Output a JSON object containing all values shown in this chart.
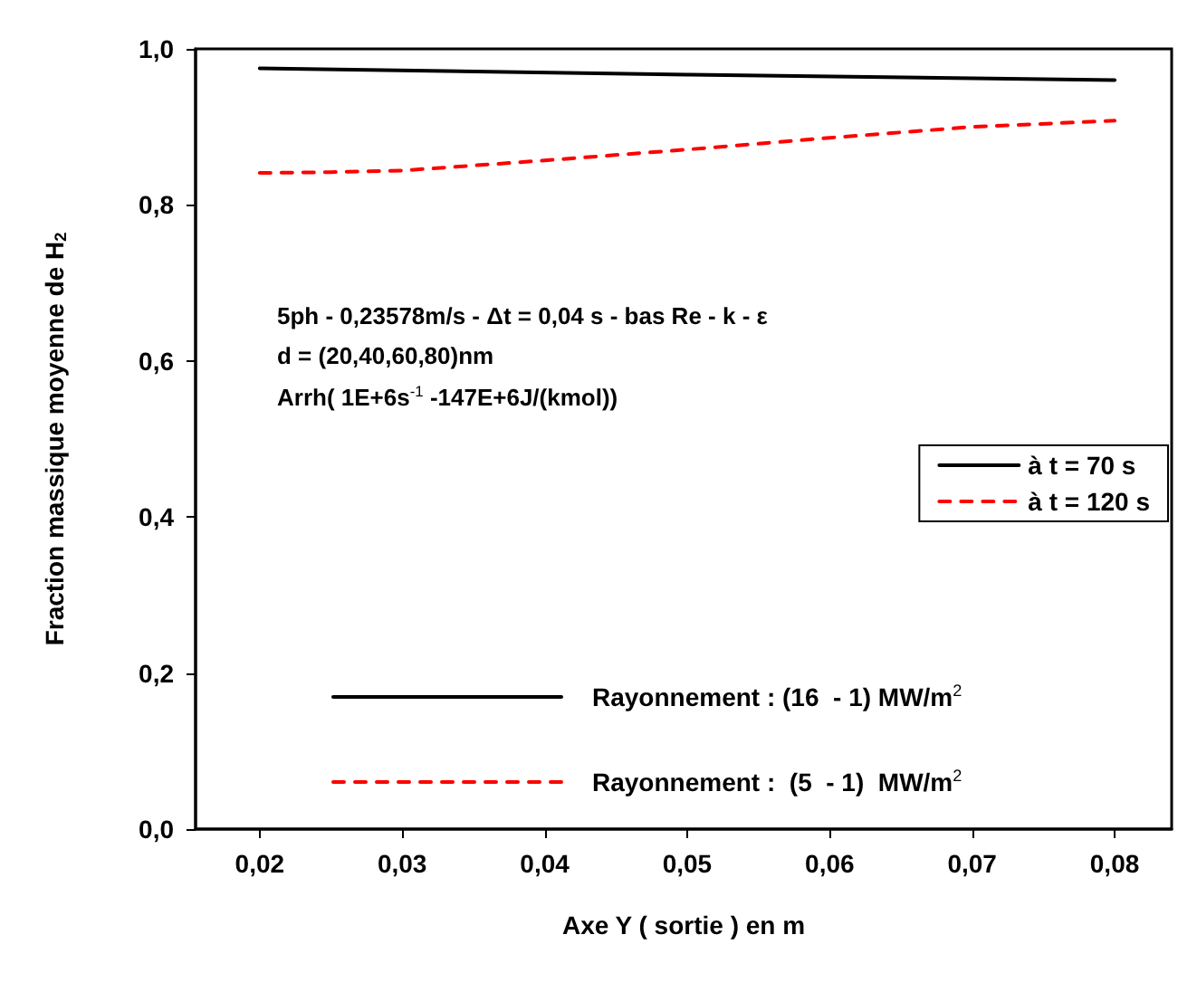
{
  "chart_data": {
    "type": "line",
    "xlabel": "Axe Y ( sortie ) en m",
    "ylabel": "Fraction massique moyenne de H$_{2}$",
    "xlim": [
      0.0155,
      0.084
    ],
    "ylim": [
      0,
      1.0
    ],
    "xticks": [
      {
        "value": 0.02,
        "label": "0,02"
      },
      {
        "value": 0.03,
        "label": "0,03"
      },
      {
        "value": 0.04,
        "label": "0,04"
      },
      {
        "value": 0.05,
        "label": "0,05"
      },
      {
        "value": 0.06,
        "label": "0,06"
      },
      {
        "value": 0.07,
        "label": "0,07"
      },
      {
        "value": 0.08,
        "label": "0,08"
      }
    ],
    "yticks": [
      {
        "value": 0,
        "label": "0,0"
      },
      {
        "value": 0.2,
        "label": "0,2"
      },
      {
        "value": 0.4,
        "label": "0,4"
      },
      {
        "value": 0.6,
        "label": "0,6"
      },
      {
        "value": 0.8,
        "label": "0,8"
      },
      {
        "value": 1.0,
        "label": "1,0"
      }
    ],
    "series": [
      {
        "name": "à t = 70 s",
        "color": "#000000",
        "line_style": "solid",
        "x": [
          0.02,
          0.05,
          0.08
        ],
        "values": [
          0.975,
          0.967,
          0.96
        ]
      },
      {
        "name": "à t = 120 s",
        "color": "#ff0000",
        "line_style": "dashed",
        "x": [
          0.02,
          0.025,
          0.03,
          0.04,
          0.05,
          0.06,
          0.07,
          0.08
        ],
        "values": [
          0.841,
          0.842,
          0.844,
          0.857,
          0.871,
          0.886,
          0.9,
          0.908
        ]
      }
    ],
    "legend": "right",
    "grid": false,
    "marker": "none",
    "annotations": [
      "5ph - 0,23578m/s - Δt = 0,04 s - bas Re - k - ε",
      "d = (20,40,60,80)nm",
      "Arrh( 1E+6s$^{-1}$ -147E+6J/(kmol))",
      "Rayonnement : (16  - 1) MW/m$^{2}$",
      "Rayonnement :  (5  - 1)  MW/m$^{2}$"
    ]
  }
}
